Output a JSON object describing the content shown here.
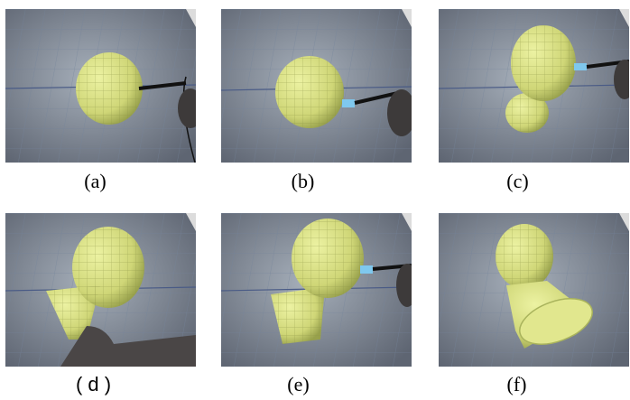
{
  "panels": [
    {
      "id": "a",
      "caption": "(a)"
    },
    {
      "id": "b",
      "caption": "(b)"
    },
    {
      "id": "c",
      "caption": "(c)"
    },
    {
      "id": "d",
      "caption": "( d )"
    },
    {
      "id": "e",
      "caption": "(e)"
    },
    {
      "id": "f",
      "caption": "(f)"
    }
  ],
  "colors": {
    "background": "#ffffff",
    "table": "#8e97a2",
    "grid": "#6f7f98",
    "mesh_fill": "#d8df7e",
    "mesh_shade": "#a9b35c",
    "stylus_tip": "#7fc8ee",
    "hand": "#3d3a3a"
  },
  "icons": [
    "stylus-icon",
    "hand-icon",
    "mesh-object-icon"
  ]
}
